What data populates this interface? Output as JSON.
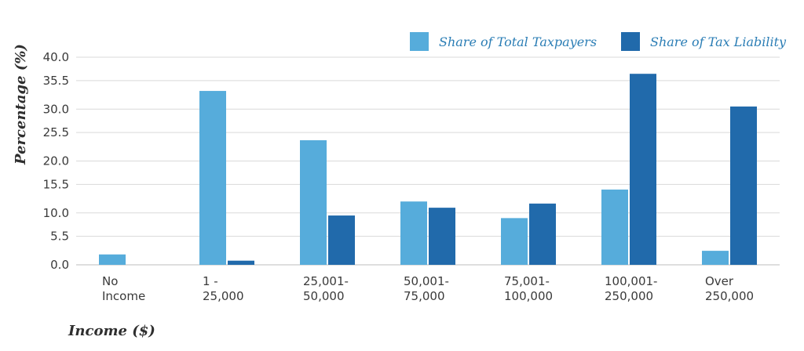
{
  "chart_data": {
    "type": "bar",
    "title": "",
    "xlabel": "Income ($)",
    "ylabel": "Percentage (%)",
    "ylim": [
      0,
      40
    ],
    "yticks": [
      "0.0",
      "5.5",
      "10.0",
      "15.5",
      "20.0",
      "25.5",
      "30.0",
      "35.5",
      "40.0"
    ],
    "categories": [
      [
        "No",
        "Income"
      ],
      [
        "1 -",
        "25,000"
      ],
      [
        "25,001-",
        "50,000"
      ],
      [
        "50,001-",
        "75,000"
      ],
      [
        "75,001-",
        "100,000"
      ],
      [
        "100,001-",
        "250,000"
      ],
      [
        "Over",
        "250,000"
      ]
    ],
    "series": [
      {
        "name": "Share of Total Taxpayers",
        "color": "#56acdb",
        "values": [
          2.0,
          33.5,
          24.0,
          12.2,
          9.0,
          14.5,
          2.7
        ]
      },
      {
        "name": "Share of Tax Liability",
        "color": "#216aab",
        "values": [
          0.0,
          0.8,
          9.5,
          11.0,
          11.8,
          36.8,
          30.5
        ]
      }
    ],
    "grid": true,
    "legend": "top-right"
  }
}
